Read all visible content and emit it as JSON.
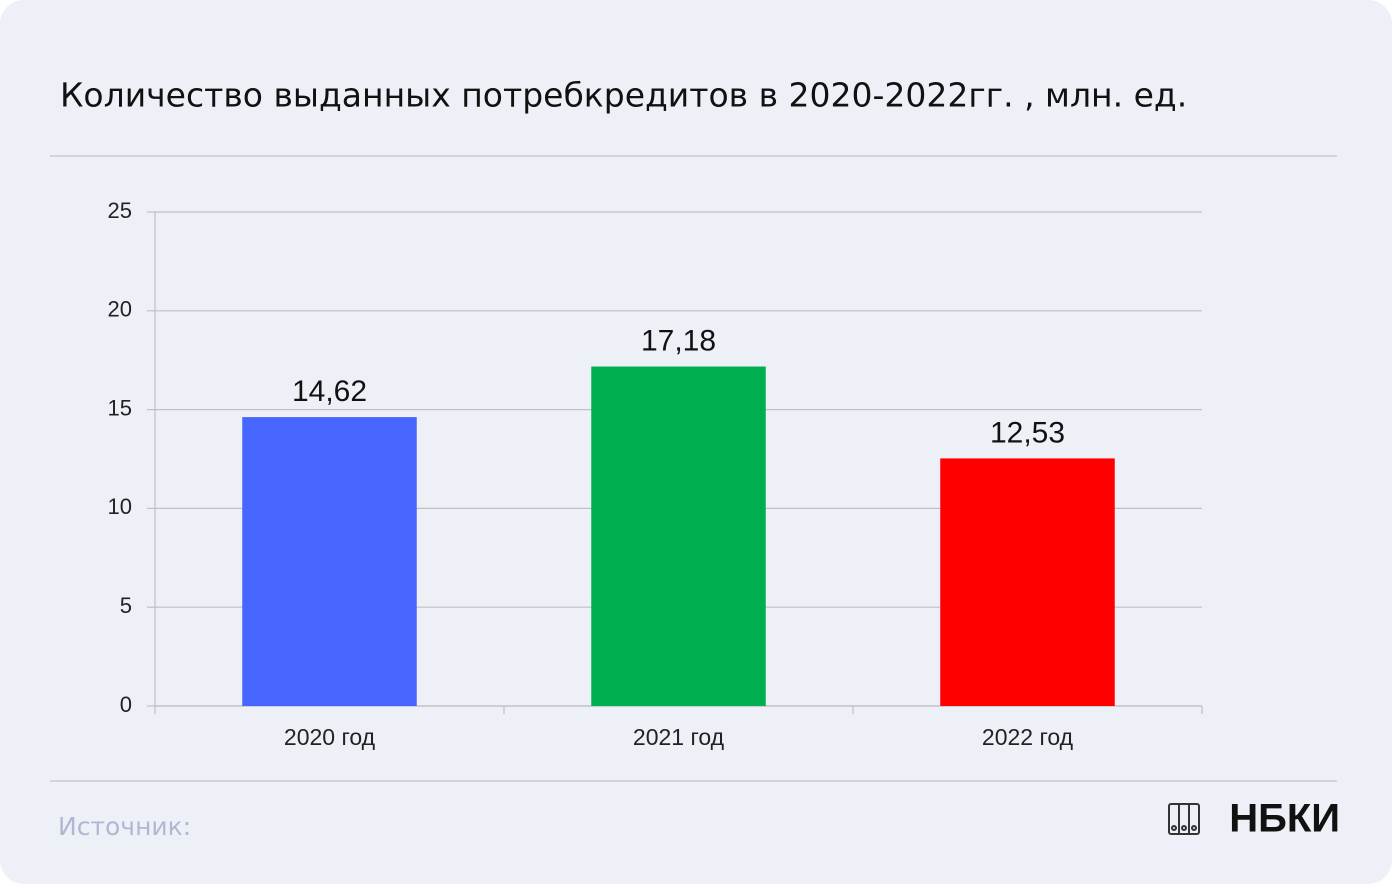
{
  "chart_data": {
    "type": "bar",
    "title": "Количество выданных потребкредитов в 2020-2022гг. , млн. ед.",
    "categories": [
      "2020 год",
      "2021 год",
      "2022 год"
    ],
    "values": [
      14.62,
      17.18,
      12.53
    ],
    "value_labels": [
      "14,62",
      "17,18",
      "12,53"
    ],
    "colors": [
      "#4766ff",
      "#00b050",
      "#ff0000"
    ],
    "ylim": [
      0,
      25
    ],
    "yticks": [
      0,
      5,
      10,
      15,
      20,
      25
    ],
    "grid": true
  },
  "footer": {
    "source": "Источник:",
    "logo": "НБКИ"
  }
}
